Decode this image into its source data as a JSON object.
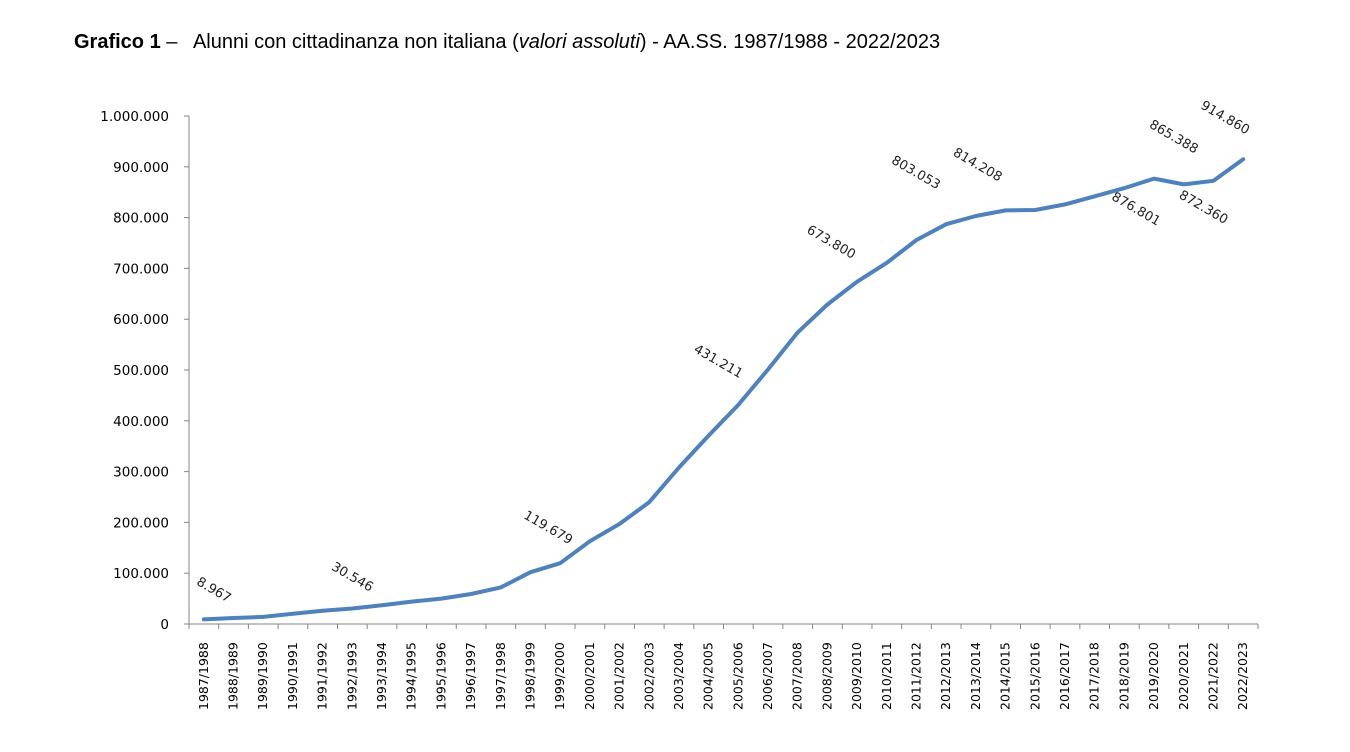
{
  "title": {
    "bold": "Grafico 1",
    "dash": " –   ",
    "pre": "Alunni con cittadinanza non italiana (",
    "italic": "valori assoluti",
    "post": ") - AA.SS. 1987/1988 - 2022/2023"
  },
  "chart_data": {
    "type": "line",
    "title": "Grafico 1 – Alunni con cittadinanza non italiana (valori assoluti) - AA.SS. 1987/1988 - 2022/2023",
    "xlabel": "",
    "ylabel": "",
    "ylim": [
      0,
      1000000
    ],
    "yticks": [
      0,
      100000,
      200000,
      300000,
      400000,
      500000,
      600000,
      700000,
      800000,
      900000,
      1000000
    ],
    "ytick_labels": [
      "0",
      "100.000",
      "200.000",
      "300.000",
      "400.000",
      "500.000",
      "600.000",
      "700.000",
      "800.000",
      "900.000",
      "1.000.000"
    ],
    "grid": false,
    "line_color": "#4F81BD",
    "categories": [
      "1987/1988",
      "1988/1989",
      "1989/1990",
      "1990/1991",
      "1991/1992",
      "1992/1993",
      "1993/1994",
      "1994/1995",
      "1995/1996",
      "1996/1997",
      "1997/1998",
      "1998/1999",
      "1999/2000",
      "2000/2001",
      "2001/2002",
      "2002/2003",
      "2003/2004",
      "2004/2005",
      "2005/2006",
      "2006/2007",
      "2007/2008",
      "2008/2009",
      "2009/2010",
      "2010/2011",
      "2011/2012",
      "2012/2013",
      "2013/2014",
      "2014/2015",
      "2015/2016",
      "2016/2017",
      "2017/2018",
      "2018/2019",
      "2019/2020",
      "2020/2021",
      "2021/2022",
      "2022/2023"
    ],
    "series": [
      {
        "name": "Alunni con cittadinanza non italiana",
        "values": [
          8967,
          11800,
          14000,
          20000,
          26000,
          30546,
          37000,
          44000,
          50000,
          59000,
          72000,
          102000,
          119679,
          163000,
          197000,
          240000,
          308000,
          371000,
          431211,
          501000,
          574000,
          629000,
          673800,
          711000,
          756000,
          787000,
          803053,
          814208,
          815000,
          826000,
          842000,
          858000,
          876801,
          865388,
          872360,
          914860
        ]
      }
    ],
    "data_labels": [
      {
        "index": 0,
        "text": "8.967"
      },
      {
        "index": 5,
        "text": "30.546"
      },
      {
        "index": 12,
        "text": "119.679"
      },
      {
        "index": 18,
        "text": "431.211"
      },
      {
        "index": 22,
        "text": "673.800"
      },
      {
        "index": 26,
        "text": "803.053"
      },
      {
        "index": 27,
        "text": "814.208"
      },
      {
        "index": 32,
        "text": "876.801"
      },
      {
        "index": 33,
        "text": "865.388"
      },
      {
        "index": 34,
        "text": "872.360"
      },
      {
        "index": 35,
        "text": "914.860"
      }
    ]
  }
}
